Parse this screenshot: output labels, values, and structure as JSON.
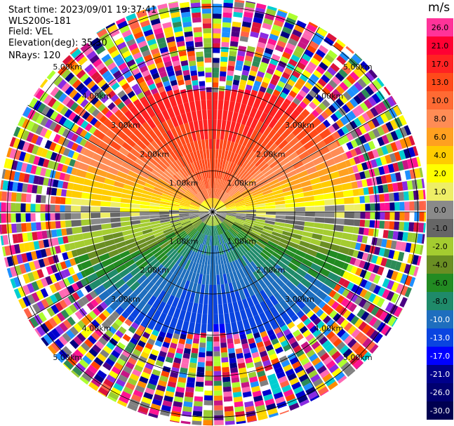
{
  "header": {
    "start_time": "Start time: 2023/09/01 19:37:41",
    "instrument": "WLS200s-181",
    "field": "Field: VEL",
    "elevation": "Elevation(deg): 35.30",
    "nrays": "NRays: 120"
  },
  "ppi": {
    "rays": 120,
    "ring_labels": [
      "1.00km",
      "2.00km",
      "3.00km",
      "4.00km",
      "5.00km"
    ],
    "max_range_km": 5.2
  },
  "colorbar": {
    "unit": "m/s",
    "ticks": [
      "26.0",
      "21.0",
      "17.0",
      "13.0",
      "10.0",
      "8.0",
      "6.0",
      "4.0",
      "2.0",
      "1.0",
      "0.0",
      "-1.0",
      "-2.0",
      "-4.0",
      "-6.0",
      "-8.0",
      "-10.0",
      "-13.0",
      "-17.0",
      "-21.0",
      "-26.0",
      "-30.0"
    ],
    "colors": [
      "#ff3399",
      "#ff0033",
      "#ff2222",
      "#ff4a1a",
      "#ff6a33",
      "#ff8c55",
      "#ffa020",
      "#ffcc00",
      "#ffff00",
      "#eeee66",
      "#8a8a8a",
      "#666666",
      "#a4cc30",
      "#6a8e23",
      "#228b22",
      "#1f8a6a",
      "#1e6ebe",
      "#0a44e0",
      "#0000ff",
      "#00008b",
      "#000070",
      "#000050"
    ]
  }
}
